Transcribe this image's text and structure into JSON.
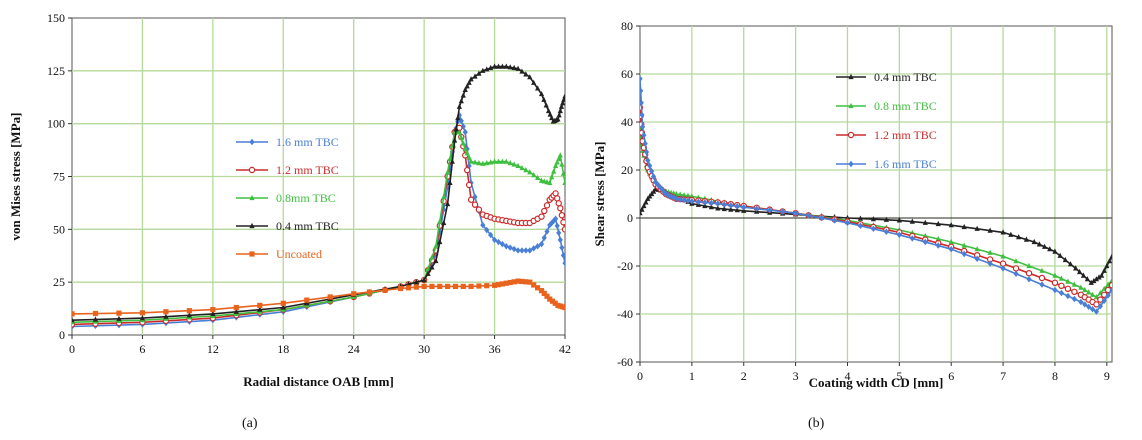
{
  "chart_data": [
    {
      "type": "line",
      "panel_label": "(a)",
      "title": "",
      "xlabel": "Radial distance OAB [mm]",
      "ylabel": "von Mises stress [MPa]",
      "xlim": [
        0,
        42
      ],
      "ylim": [
        0,
        150
      ],
      "xticks": [
        0,
        6,
        12,
        18,
        24,
        30,
        36,
        42
      ],
      "yticks": [
        0,
        25,
        50,
        75,
        100,
        125,
        150
      ],
      "grid": true,
      "legend": "center-left",
      "colors": {
        "grid": "#b5d99a"
      },
      "series": [
        {
          "name": "1.6 mm TBC",
          "color": "#4a7fd6",
          "marker": "diamond",
          "x": [
            0,
            6,
            12,
            18,
            24,
            28,
            30,
            31,
            32,
            32.6,
            33,
            33.5,
            34,
            35,
            36,
            37,
            38,
            39,
            40,
            40.7,
            41.2,
            41.6,
            42
          ],
          "y": [
            4,
            5,
            7,
            11,
            18,
            23,
            26,
            38,
            70,
            95,
            104,
            96,
            72,
            52,
            45,
            42,
            40,
            40,
            43,
            52,
            55,
            45,
            34
          ]
        },
        {
          "name": "1.2 mm TBC",
          "color": "#cc2b2b",
          "marker": "circle",
          "x": [
            0,
            6,
            12,
            18,
            24,
            28,
            30,
            31,
            32,
            32.6,
            33,
            33.5,
            34,
            35,
            36,
            37,
            38,
            39,
            40,
            40.7,
            41.2,
            41.6,
            42
          ],
          "y": [
            5,
            6,
            8,
            12,
            18,
            23,
            26,
            40,
            75,
            96,
            98,
            85,
            64,
            57,
            55,
            54,
            53,
            53,
            56,
            64,
            67,
            60,
            50
          ]
        },
        {
          "name": "0.8mm TBC",
          "color": "#3fbf3f",
          "marker": "triangle",
          "x": [
            0,
            6,
            12,
            18,
            24,
            28,
            30,
            31,
            32,
            32.6,
            33,
            33.5,
            34,
            35,
            36,
            37,
            38,
            39,
            40,
            40.7,
            41.2,
            41.6,
            42
          ],
          "y": [
            6,
            7,
            9,
            12,
            18,
            23,
            26,
            42,
            77,
            96,
            96,
            88,
            82,
            81,
            82,
            82,
            80,
            77,
            73,
            72,
            80,
            85,
            72
          ]
        },
        {
          "name": "0.4 mm TBC",
          "color": "#222222",
          "marker": "triangle",
          "x": [
            0,
            6,
            12,
            18,
            24,
            28,
            30,
            31,
            32,
            32.6,
            33,
            33.5,
            34,
            35,
            36,
            37,
            38,
            39,
            40,
            40.6,
            41,
            41.4,
            41.7,
            42
          ],
          "y": [
            7,
            8,
            10,
            13,
            19,
            23,
            26,
            35,
            62,
            92,
            108,
            116,
            121,
            125,
            127,
            127,
            126,
            122,
            114,
            106,
            101,
            102,
            108,
            113
          ]
        },
        {
          "name": "Uncoated",
          "color": "#e8641e",
          "marker": "square",
          "x": [
            0,
            6,
            12,
            18,
            24,
            28,
            30,
            32,
            34,
            36,
            37,
            38,
            39,
            40,
            40.7,
            41.4,
            42
          ],
          "y": [
            10,
            10.5,
            12,
            15,
            19.5,
            22,
            23,
            23,
            23,
            23.5,
            24.5,
            25.5,
            25,
            21,
            17,
            14,
            13
          ]
        }
      ]
    },
    {
      "type": "line",
      "panel_label": "(b)",
      "title": "",
      "xlabel": "Coating width CD [mm]",
      "ylabel": "Shear stress [MPa]",
      "xlim": [
        0,
        9.1
      ],
      "ylim": [
        -60,
        80
      ],
      "xticks": [
        0,
        1,
        2,
        3,
        4,
        5,
        6,
        7,
        8,
        9
      ],
      "yticks": [
        -60,
        -40,
        -20,
        0,
        20,
        40,
        60,
        80
      ],
      "grid": true,
      "legend": "top-center",
      "colors": {
        "grid": "#b5d99a"
      },
      "series": [
        {
          "name": "0.4 mm TBC",
          "color": "#222222",
          "marker": "triangle",
          "x": [
            0,
            0.15,
            0.3,
            0.5,
            0.7,
            1,
            1.5,
            2,
            3,
            4,
            5,
            6,
            7,
            7.6,
            8,
            8.4,
            8.7,
            8.9,
            9.1
          ],
          "y": [
            2,
            8,
            12,
            11,
            9,
            6,
            4,
            3,
            1.5,
            0,
            -1,
            -3,
            -6,
            -10,
            -14,
            -21,
            -27,
            -24,
            -16
          ]
        },
        {
          "name": "0.8 mm TBC",
          "color": "#3fbf3f",
          "marker": "triangle",
          "x": [
            0,
            0.05,
            0.15,
            0.3,
            0.5,
            0.7,
            1,
            1.5,
            2,
            3,
            4,
            5,
            6,
            7,
            8,
            8.5,
            8.8,
            9.1
          ],
          "y": [
            38,
            28,
            20,
            14,
            11,
            10,
            9,
            7,
            5,
            2,
            -1,
            -5,
            -10,
            -16,
            -24,
            -29,
            -33,
            -26
          ]
        },
        {
          "name": "1.2 mm TBC",
          "color": "#cc2b2b",
          "marker": "circle",
          "x": [
            0,
            0.05,
            0.15,
            0.3,
            0.5,
            0.7,
            1,
            1.5,
            2,
            3,
            4,
            5,
            6,
            7,
            8,
            8.5,
            8.8,
            9.1
          ],
          "y": [
            46,
            32,
            21,
            14,
            10,
            8,
            7.5,
            6.5,
            5,
            2,
            -1.5,
            -6,
            -12,
            -19,
            -27,
            -32,
            -36,
            -28
          ]
        },
        {
          "name": "1.6 mm TBC",
          "color": "#4a7fd6",
          "marker": "diamond",
          "x": [
            0,
            0.05,
            0.15,
            0.3,
            0.5,
            0.7,
            1,
            1.5,
            2,
            3,
            4,
            5,
            6,
            7,
            8,
            8.5,
            8.8,
            9.1
          ],
          "y": [
            58,
            38,
            24,
            15,
            10,
            8,
            7,
            6,
            4.5,
            2,
            -2,
            -7,
            -13,
            -21,
            -30,
            -35,
            -39,
            -30
          ]
        }
      ]
    }
  ]
}
